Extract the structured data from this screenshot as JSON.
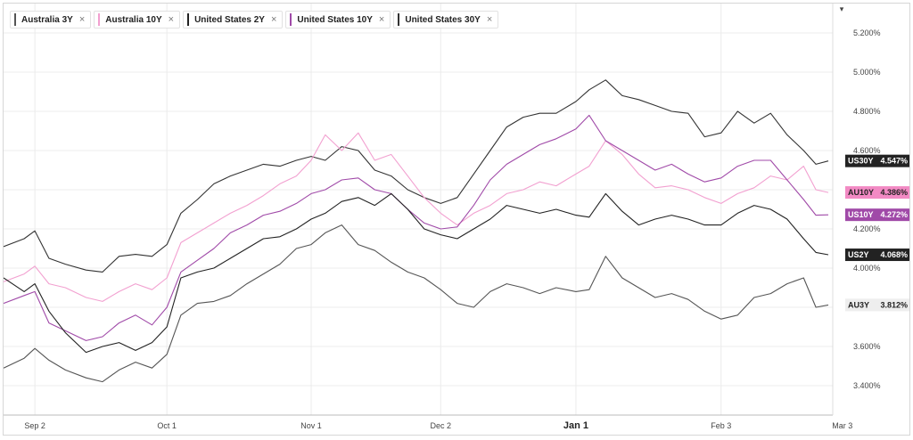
{
  "legend": [
    {
      "name": "Australia 3Y",
      "color": "#555555",
      "close": "×"
    },
    {
      "name": "Australia 10Y",
      "color": "#f2a0d0",
      "close": "×"
    },
    {
      "name": "United States 2Y",
      "color": "#222222",
      "close": "×"
    },
    {
      "name": "United States 10Y",
      "color": "#a04aa8",
      "close": "×"
    },
    {
      "name": "United States 30Y",
      "color": "#333333",
      "close": "×"
    }
  ],
  "chart_data": {
    "type": "line",
    "y_unit": "%",
    "ylim": [
      3.25,
      5.35
    ],
    "yticks": [
      "5.200%",
      "5.000%",
      "4.800%",
      "4.600%",
      "4.400%",
      "4.200%",
      "4.000%",
      "3.800%",
      "3.600%",
      "3.400%"
    ],
    "ytick_values": [
      5.2,
      5.0,
      4.8,
      4.6,
      4.4,
      4.2,
      4.0,
      3.8,
      3.6,
      3.4
    ],
    "xticks": [
      {
        "label": "Sep 2",
        "frac": 0.038,
        "bold": false
      },
      {
        "label": "Oct 1",
        "frac": 0.198,
        "bold": false
      },
      {
        "label": "Nov 1",
        "frac": 0.373,
        "bold": false
      },
      {
        "label": "Dec 2",
        "frac": 0.53,
        "bold": false
      },
      {
        "label": "Jan 1",
        "frac": 0.694,
        "bold": true
      },
      {
        "label": "Feb 3",
        "frac": 0.87,
        "bold": false
      },
      {
        "label": "Mar 3",
        "frac": 1.017,
        "bold": false
      }
    ],
    "grid": true,
    "series": [
      {
        "name": "United States 30Y",
        "tag": "US30Y",
        "last_label": "4.547%",
        "last": 4.547,
        "color": "#333333",
        "tag_bg": "#222222",
        "tag_fg": "#ffffff",
        "x": [
          0.0,
          0.025,
          0.038,
          0.055,
          0.075,
          0.1,
          0.12,
          0.14,
          0.16,
          0.18,
          0.198,
          0.215,
          0.235,
          0.255,
          0.275,
          0.295,
          0.315,
          0.335,
          0.355,
          0.373,
          0.39,
          0.41,
          0.43,
          0.45,
          0.47,
          0.49,
          0.51,
          0.53,
          0.55,
          0.57,
          0.59,
          0.61,
          0.63,
          0.65,
          0.67,
          0.694,
          0.71,
          0.73,
          0.75,
          0.77,
          0.79,
          0.81,
          0.83,
          0.85,
          0.87,
          0.89,
          0.91,
          0.93,
          0.95,
          0.97,
          0.985,
          1.0
        ],
        "y": [
          4.11,
          4.15,
          4.19,
          4.05,
          4.02,
          3.99,
          3.98,
          4.06,
          4.07,
          4.06,
          4.12,
          4.28,
          4.35,
          4.43,
          4.47,
          4.5,
          4.53,
          4.52,
          4.55,
          4.57,
          4.55,
          4.62,
          4.6,
          4.5,
          4.47,
          4.4,
          4.36,
          4.33,
          4.36,
          4.48,
          4.6,
          4.72,
          4.77,
          4.79,
          4.79,
          4.85,
          4.91,
          4.96,
          4.88,
          4.86,
          4.83,
          4.8,
          4.79,
          4.67,
          4.69,
          4.8,
          4.74,
          4.79,
          4.68,
          4.6,
          4.53,
          4.547
        ]
      },
      {
        "name": "Australia 10Y",
        "tag": "AU10Y",
        "last_label": "4.386%",
        "last": 4.386,
        "color": "#f2a0d0",
        "tag_bg": "#f28ac4",
        "tag_fg": "#222222",
        "x": [
          0.0,
          0.025,
          0.038,
          0.055,
          0.075,
          0.1,
          0.12,
          0.14,
          0.16,
          0.18,
          0.198,
          0.215,
          0.235,
          0.255,
          0.275,
          0.295,
          0.315,
          0.335,
          0.355,
          0.373,
          0.39,
          0.41,
          0.43,
          0.45,
          0.47,
          0.49,
          0.51,
          0.53,
          0.55,
          0.57,
          0.59,
          0.61,
          0.63,
          0.65,
          0.67,
          0.694,
          0.71,
          0.73,
          0.75,
          0.77,
          0.79,
          0.81,
          0.83,
          0.85,
          0.87,
          0.89,
          0.91,
          0.93,
          0.95,
          0.97,
          0.985,
          1.0
        ],
        "y": [
          3.93,
          3.97,
          4.01,
          3.92,
          3.9,
          3.85,
          3.83,
          3.88,
          3.92,
          3.89,
          3.95,
          4.13,
          4.18,
          4.23,
          4.28,
          4.32,
          4.37,
          4.43,
          4.47,
          4.55,
          4.68,
          4.6,
          4.69,
          4.55,
          4.58,
          4.47,
          4.36,
          4.28,
          4.22,
          4.28,
          4.32,
          4.38,
          4.4,
          4.44,
          4.42,
          4.48,
          4.52,
          4.65,
          4.58,
          4.48,
          4.41,
          4.42,
          4.4,
          4.36,
          4.33,
          4.38,
          4.41,
          4.47,
          4.45,
          4.52,
          4.4,
          4.386
        ]
      },
      {
        "name": "United States 10Y",
        "tag": "US10Y",
        "last_label": "4.272%",
        "last": 4.272,
        "color": "#a04aa8",
        "tag_bg": "#a04aa8",
        "tag_fg": "#ffffff",
        "x": [
          0.0,
          0.025,
          0.038,
          0.055,
          0.075,
          0.1,
          0.12,
          0.14,
          0.16,
          0.18,
          0.198,
          0.215,
          0.235,
          0.255,
          0.275,
          0.295,
          0.315,
          0.335,
          0.355,
          0.373,
          0.39,
          0.41,
          0.43,
          0.45,
          0.47,
          0.49,
          0.51,
          0.53,
          0.55,
          0.57,
          0.59,
          0.61,
          0.63,
          0.65,
          0.67,
          0.694,
          0.71,
          0.73,
          0.75,
          0.77,
          0.79,
          0.81,
          0.83,
          0.85,
          0.87,
          0.89,
          0.91,
          0.93,
          0.95,
          0.97,
          0.985,
          1.0
        ],
        "y": [
          3.82,
          3.86,
          3.88,
          3.72,
          3.68,
          3.63,
          3.65,
          3.72,
          3.76,
          3.71,
          3.8,
          3.98,
          4.04,
          4.1,
          4.18,
          4.22,
          4.27,
          4.29,
          4.33,
          4.38,
          4.4,
          4.45,
          4.46,
          4.4,
          4.38,
          4.3,
          4.23,
          4.2,
          4.21,
          4.32,
          4.45,
          4.53,
          4.58,
          4.63,
          4.66,
          4.71,
          4.78,
          4.65,
          4.6,
          4.55,
          4.5,
          4.53,
          4.48,
          4.44,
          4.46,
          4.52,
          4.55,
          4.55,
          4.45,
          4.35,
          4.27,
          4.272
        ]
      },
      {
        "name": "United States 2Y",
        "tag": "US2Y",
        "last_label": "4.068%",
        "last": 4.068,
        "color": "#222222",
        "tag_bg": "#222222",
        "tag_fg": "#ffffff",
        "x": [
          0.0,
          0.025,
          0.038,
          0.055,
          0.075,
          0.1,
          0.12,
          0.14,
          0.16,
          0.18,
          0.198,
          0.215,
          0.235,
          0.255,
          0.275,
          0.295,
          0.315,
          0.335,
          0.355,
          0.373,
          0.39,
          0.41,
          0.43,
          0.45,
          0.47,
          0.49,
          0.51,
          0.53,
          0.55,
          0.57,
          0.59,
          0.61,
          0.63,
          0.65,
          0.67,
          0.694,
          0.71,
          0.73,
          0.75,
          0.77,
          0.79,
          0.81,
          0.83,
          0.85,
          0.87,
          0.89,
          0.91,
          0.93,
          0.95,
          0.97,
          0.985,
          1.0
        ],
        "y": [
          3.95,
          3.88,
          3.92,
          3.78,
          3.67,
          3.57,
          3.6,
          3.62,
          3.58,
          3.62,
          3.7,
          3.95,
          3.98,
          4.0,
          4.05,
          4.1,
          4.15,
          4.16,
          4.2,
          4.25,
          4.28,
          4.34,
          4.36,
          4.32,
          4.38,
          4.3,
          4.2,
          4.17,
          4.15,
          4.2,
          4.25,
          4.32,
          4.3,
          4.28,
          4.3,
          4.27,
          4.26,
          4.38,
          4.29,
          4.22,
          4.25,
          4.27,
          4.25,
          4.22,
          4.22,
          4.28,
          4.32,
          4.3,
          4.25,
          4.15,
          4.08,
          4.068
        ]
      },
      {
        "name": "Australia 3Y",
        "tag": "AU3Y",
        "last_label": "3.812%",
        "last": 3.812,
        "color": "#555555",
        "tag_bg": "#eeeeee",
        "tag_fg": "#222222",
        "x": [
          0.0,
          0.025,
          0.038,
          0.055,
          0.075,
          0.1,
          0.12,
          0.14,
          0.16,
          0.18,
          0.198,
          0.215,
          0.235,
          0.255,
          0.275,
          0.295,
          0.315,
          0.335,
          0.355,
          0.373,
          0.39,
          0.41,
          0.43,
          0.45,
          0.47,
          0.49,
          0.51,
          0.53,
          0.55,
          0.57,
          0.59,
          0.61,
          0.63,
          0.65,
          0.67,
          0.694,
          0.71,
          0.73,
          0.75,
          0.77,
          0.79,
          0.81,
          0.83,
          0.85,
          0.87,
          0.89,
          0.91,
          0.93,
          0.95,
          0.97,
          0.985,
          1.0
        ],
        "y": [
          3.49,
          3.54,
          3.59,
          3.53,
          3.48,
          3.44,
          3.42,
          3.48,
          3.52,
          3.49,
          3.56,
          3.76,
          3.82,
          3.83,
          3.86,
          3.92,
          3.97,
          4.02,
          4.1,
          4.12,
          4.18,
          4.22,
          4.12,
          4.09,
          4.03,
          3.98,
          3.95,
          3.89,
          3.82,
          3.8,
          3.88,
          3.92,
          3.9,
          3.87,
          3.9,
          3.88,
          3.89,
          4.06,
          3.95,
          3.9,
          3.85,
          3.87,
          3.84,
          3.78,
          3.74,
          3.76,
          3.85,
          3.87,
          3.92,
          3.95,
          3.8,
          3.812
        ]
      }
    ]
  }
}
